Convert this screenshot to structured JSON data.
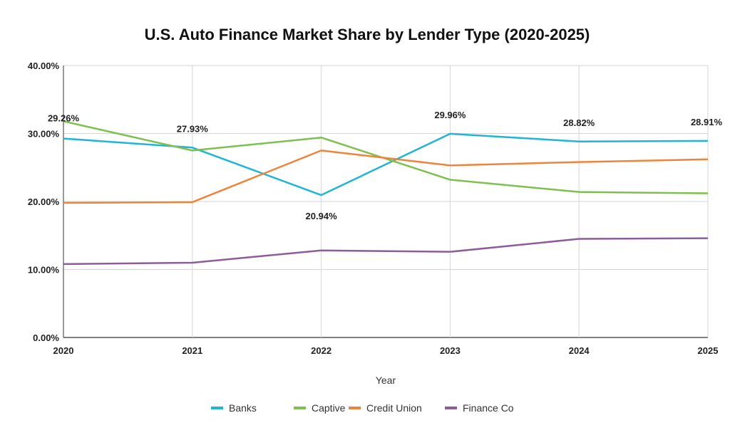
{
  "chart_data": {
    "type": "line",
    "title": "U.S. Auto Finance Market Share by Lender Type (2020-2025)",
    "xlabel": "Year",
    "ylabel": "",
    "categories": [
      "2020",
      "2021",
      "2022",
      "2023",
      "2024",
      "2025"
    ],
    "ylim": [
      0,
      40
    ],
    "yticks": [
      {
        "value": 0,
        "label": "0.00%"
      },
      {
        "value": 10,
        "label": "10.00%"
      },
      {
        "value": 20,
        "label": "20.00%"
      },
      {
        "value": 30,
        "label": "30.00%"
      },
      {
        "value": 40,
        "label": "40.00%"
      }
    ],
    "grid": true,
    "legend": "bottom",
    "series": [
      {
        "name": "Banks",
        "color": "#1fb5d6",
        "values": [
          29.26,
          27.93,
          20.94,
          29.96,
          28.82,
          28.91
        ],
        "data_labels": [
          "29.26%",
          "27.93%",
          "20.94%",
          "29.96%",
          "28.82%",
          "28.91%"
        ]
      },
      {
        "name": "Captive",
        "color": "#7ec04f",
        "values": [
          31.8,
          27.5,
          29.4,
          23.2,
          21.4,
          21.2
        ]
      },
      {
        "name": "Credit Union",
        "color": "#f0833a",
        "values": [
          19.8,
          19.9,
          27.5,
          25.3,
          25.8,
          26.2
        ]
      },
      {
        "name": "Finance Co",
        "color": "#8e5c9a",
        "values": [
          10.8,
          11.0,
          12.8,
          12.6,
          14.5,
          14.6
        ]
      }
    ]
  }
}
